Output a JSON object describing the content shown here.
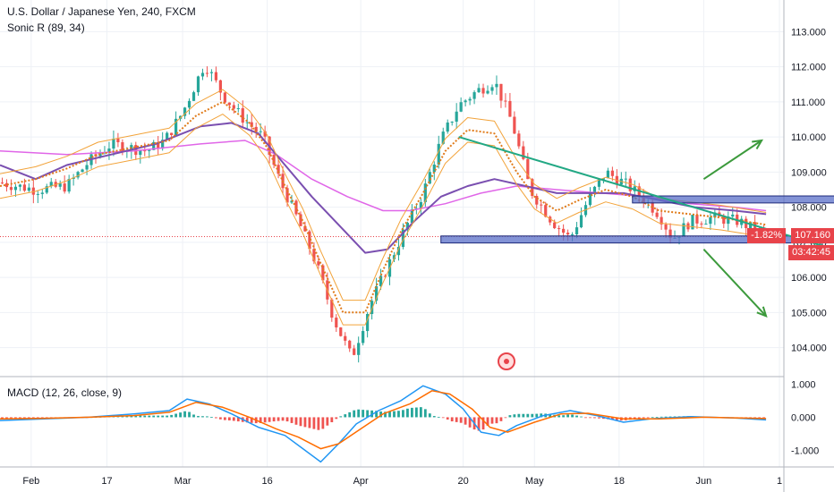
{
  "header": {
    "symbol": "U.S. Dollar / Japanese Yen, 240, FXCM",
    "indicator": "Sonic R (89, 34)",
    "macd_label": "MACD (12, 26, close, 9)"
  },
  "colors": {
    "background": "#ffffff",
    "grid": "#eef1f6",
    "up_candle": "#26a69a",
    "down_candle": "#ef5350",
    "ema_fast": "#f2a33a",
    "ema_slow": "#7a4fb0",
    "ema_long": "#e066e8",
    "trendline": "#22a884",
    "arrow": "#3c9a3c",
    "zone_fill": "#5a6fc8",
    "price_marker": "#e8434a",
    "macd_line": "#2196f3",
    "signal_line": "#ff6d00"
  },
  "price_badges": {
    "change": "-1.82%",
    "last_price": "107.160",
    "countdown": "03:42:45"
  },
  "chart_data": [
    {
      "type": "line",
      "title": "U.S. Dollar / Japanese Yen, 240, FXCM",
      "ylim": [
        103.2,
        113.9
      ],
      "y_ticks": [
        "113.000",
        "112.000",
        "111.000",
        "110.000",
        "109.000",
        "108.000",
        "107.000",
        "106.000",
        "105.000",
        "104.000"
      ],
      "x_ticks": [
        "Feb",
        "17",
        "Mar",
        "16",
        "Apr",
        "20",
        "May",
        "18",
        "Jun",
        "1"
      ],
      "last_price": 107.16,
      "price_path": [
        {
          "x": 0,
          "y": 108.7
        },
        {
          "x": 8,
          "y": 108.5
        },
        {
          "x": 15,
          "y": 108.6
        },
        {
          "x": 20,
          "y": 109.3
        },
        {
          "x": 25,
          "y": 109.8
        },
        {
          "x": 33,
          "y": 109.6
        },
        {
          "x": 37,
          "y": 109.9
        },
        {
          "x": 41,
          "y": 110.7
        },
        {
          "x": 46,
          "y": 112.1
        },
        {
          "x": 50,
          "y": 111.2
        },
        {
          "x": 54,
          "y": 110.6
        },
        {
          "x": 59,
          "y": 110.0
        },
        {
          "x": 63,
          "y": 108.7
        },
        {
          "x": 67,
          "y": 107.6
        },
        {
          "x": 71,
          "y": 106.4
        },
        {
          "x": 75,
          "y": 104.8
        },
        {
          "x": 79,
          "y": 103.7
        },
        {
          "x": 83,
          "y": 105.2
        },
        {
          "x": 87,
          "y": 106.3
        },
        {
          "x": 91,
          "y": 107.4
        },
        {
          "x": 95,
          "y": 108.4
        },
        {
          "x": 99,
          "y": 109.9
        },
        {
          "x": 103,
          "y": 110.9
        },
        {
          "x": 107,
          "y": 111.3
        },
        {
          "x": 111,
          "y": 111.6
        },
        {
          "x": 115,
          "y": 110.4
        },
        {
          "x": 119,
          "y": 108.5
        },
        {
          "x": 124,
          "y": 107.6
        },
        {
          "x": 128,
          "y": 107.1
        },
        {
          "x": 132,
          "y": 108.2
        },
        {
          "x": 136,
          "y": 109.0
        },
        {
          "x": 140,
          "y": 108.7
        },
        {
          "x": 144,
          "y": 108.3
        },
        {
          "x": 148,
          "y": 107.8
        },
        {
          "x": 151,
          "y": 107.1
        },
        {
          "x": 155,
          "y": 107.6
        },
        {
          "x": 160,
          "y": 107.7
        },
        {
          "x": 166,
          "y": 107.6
        },
        {
          "x": 172,
          "y": 107.16
        }
      ],
      "series": [
        {
          "values": [
            {
              "x": 0,
              "y": 108.6
            },
            {
              "x": 8,
              "y": 108.8
            },
            {
              "x": 15,
              "y": 109.1
            },
            {
              "x": 22,
              "y": 109.5
            },
            {
              "x": 30,
              "y": 109.7
            },
            {
              "x": 38,
              "y": 109.9
            },
            {
              "x": 44,
              "y": 110.6
            },
            {
              "x": 50,
              "y": 111.0
            },
            {
              "x": 56,
              "y": 110.4
            },
            {
              "x": 60,
              "y": 109.7
            },
            {
              "x": 64,
              "y": 108.6
            },
            {
              "x": 68,
              "y": 107.6
            },
            {
              "x": 72,
              "y": 106.4
            },
            {
              "x": 77,
              "y": 105.0
            },
            {
              "x": 82,
              "y": 105.0
            },
            {
              "x": 86,
              "y": 106.2
            },
            {
              "x": 90,
              "y": 107.3
            },
            {
              "x": 95,
              "y": 108.4
            },
            {
              "x": 100,
              "y": 109.6
            },
            {
              "x": 105,
              "y": 110.2
            },
            {
              "x": 111,
              "y": 110.1
            },
            {
              "x": 116,
              "y": 109.0
            },
            {
              "x": 120,
              "y": 108.3
            },
            {
              "x": 125,
              "y": 107.9
            },
            {
              "x": 130,
              "y": 108.2
            },
            {
              "x": 136,
              "y": 108.5
            },
            {
              "x": 142,
              "y": 108.3
            },
            {
              "x": 148,
              "y": 107.9
            },
            {
              "x": 155,
              "y": 107.8
            },
            {
              "x": 162,
              "y": 107.7
            },
            {
              "x": 172,
              "y": 107.5
            }
          ]
        },
        {
          "values": [
            {
              "x": 0,
              "y": 109.2
            },
            {
              "x": 8,
              "y": 108.8
            },
            {
              "x": 15,
              "y": 109.2
            },
            {
              "x": 25,
              "y": 109.5
            },
            {
              "x": 35,
              "y": 109.8
            },
            {
              "x": 45,
              "y": 110.3
            },
            {
              "x": 52,
              "y": 110.4
            },
            {
              "x": 58,
              "y": 110.1
            },
            {
              "x": 64,
              "y": 109.2
            },
            {
              "x": 70,
              "y": 108.3
            },
            {
              "x": 76,
              "y": 107.5
            },
            {
              "x": 82,
              "y": 106.7
            },
            {
              "x": 87,
              "y": 106.8
            },
            {
              "x": 93,
              "y": 107.6
            },
            {
              "x": 99,
              "y": 108.3
            },
            {
              "x": 105,
              "y": 108.6
            },
            {
              "x": 111,
              "y": 108.8
            },
            {
              "x": 118,
              "y": 108.6
            },
            {
              "x": 125,
              "y": 108.4
            },
            {
              "x": 132,
              "y": 108.4
            },
            {
              "x": 140,
              "y": 108.4
            },
            {
              "x": 148,
              "y": 108.2
            },
            {
              "x": 156,
              "y": 108.0
            },
            {
              "x": 165,
              "y": 107.9
            },
            {
              "x": 172,
              "y": 107.8
            }
          ]
        },
        {
          "values": [
            {
              "x": 0,
              "y": 109.6
            },
            {
              "x": 15,
              "y": 109.5
            },
            {
              "x": 30,
              "y": 109.6
            },
            {
              "x": 45,
              "y": 109.8
            },
            {
              "x": 55,
              "y": 109.9
            },
            {
              "x": 62,
              "y": 109.5
            },
            {
              "x": 70,
              "y": 108.8
            },
            {
              "x": 78,
              "y": 108.3
            },
            {
              "x": 86,
              "y": 107.9
            },
            {
              "x": 92,
              "y": 107.9
            },
            {
              "x": 100,
              "y": 108.1
            },
            {
              "x": 108,
              "y": 108.4
            },
            {
              "x": 116,
              "y": 108.6
            },
            {
              "x": 125,
              "y": 108.5
            },
            {
              "x": 135,
              "y": 108.4
            },
            {
              "x": 145,
              "y": 108.3
            },
            {
              "x": 155,
              "y": 108.1
            },
            {
              "x": 165,
              "y": 108.0
            },
            {
              "x": 172,
              "y": 107.9
            }
          ]
        }
      ],
      "annotations": {
        "resistance_zone": {
          "x": [
            142,
            191
          ],
          "y": [
            108.12,
            108.32
          ]
        },
        "support_zone": {
          "x": [
            99,
            193
          ],
          "y": [
            106.98,
            107.18
          ]
        },
        "trendline": [
          {
            "x": 103,
            "y": 110.0
          },
          {
            "x": 190,
            "y": 106.7
          }
        ],
        "up_arrow": [
          {
            "x": 158,
            "y": 108.8
          },
          {
            "x": 171,
            "y": 109.9
          }
        ],
        "down_arrow": [
          {
            "x": 158,
            "y": 106.8
          },
          {
            "x": 172,
            "y": 104.9
          }
        ]
      },
      "xlabel": "",
      "ylabel": ""
    },
    {
      "type": "line",
      "title": "MACD (12, 26, close, 9)",
      "ylim": [
        -1.5,
        1.2
      ],
      "y_ticks": [
        "1.000",
        "0.000",
        "-1.000"
      ],
      "series": [
        {
          "values": [
            {
              "x": 0,
              "y": -0.1
            },
            {
              "x": 10,
              "y": -0.05
            },
            {
              "x": 20,
              "y": 0.0
            },
            {
              "x": 30,
              "y": 0.1
            },
            {
              "x": 38,
              "y": 0.2
            },
            {
              "x": 42,
              "y": 0.55
            },
            {
              "x": 47,
              "y": 0.4
            },
            {
              "x": 52,
              "y": 0.1
            },
            {
              "x": 58,
              "y": -0.3
            },
            {
              "x": 64,
              "y": -0.55
            },
            {
              "x": 68,
              "y": -0.95
            },
            {
              "x": 72,
              "y": -1.35
            },
            {
              "x": 76,
              "y": -0.8
            },
            {
              "x": 80,
              "y": -0.2
            },
            {
              "x": 85,
              "y": 0.2
            },
            {
              "x": 90,
              "y": 0.5
            },
            {
              "x": 95,
              "y": 0.95
            },
            {
              "x": 100,
              "y": 0.7
            },
            {
              "x": 104,
              "y": 0.25
            },
            {
              "x": 108,
              "y": -0.45
            },
            {
              "x": 112,
              "y": -0.55
            },
            {
              "x": 116,
              "y": -0.25
            },
            {
              "x": 122,
              "y": 0.05
            },
            {
              "x": 128,
              "y": 0.2
            },
            {
              "x": 134,
              "y": 0.05
            },
            {
              "x": 140,
              "y": -0.15
            },
            {
              "x": 146,
              "y": -0.05
            },
            {
              "x": 155,
              "y": 0.02
            },
            {
              "x": 165,
              "y": -0.02
            },
            {
              "x": 172,
              "y": -0.08
            }
          ]
        },
        {
          "values": [
            {
              "x": 0,
              "y": -0.05
            },
            {
              "x": 10,
              "y": -0.03
            },
            {
              "x": 20,
              "y": 0.0
            },
            {
              "x": 30,
              "y": 0.05
            },
            {
              "x": 38,
              "y": 0.15
            },
            {
              "x": 44,
              "y": 0.45
            },
            {
              "x": 50,
              "y": 0.3
            },
            {
              "x": 56,
              "y": 0.0
            },
            {
              "x": 62,
              "y": -0.35
            },
            {
              "x": 67,
              "y": -0.6
            },
            {
              "x": 72,
              "y": -0.95
            },
            {
              "x": 76,
              "y": -0.8
            },
            {
              "x": 81,
              "y": -0.35
            },
            {
              "x": 86,
              "y": 0.1
            },
            {
              "x": 92,
              "y": 0.4
            },
            {
              "x": 97,
              "y": 0.8
            },
            {
              "x": 101,
              "y": 0.7
            },
            {
              "x": 106,
              "y": 0.25
            },
            {
              "x": 110,
              "y": -0.3
            },
            {
              "x": 114,
              "y": -0.45
            },
            {
              "x": 120,
              "y": -0.15
            },
            {
              "x": 126,
              "y": 0.1
            },
            {
              "x": 132,
              "y": 0.12
            },
            {
              "x": 140,
              "y": -0.05
            },
            {
              "x": 148,
              "y": -0.05
            },
            {
              "x": 158,
              "y": 0.0
            },
            {
              "x": 172,
              "y": -0.04
            }
          ]
        }
      ],
      "xlabel": "",
      "ylabel": ""
    }
  ]
}
